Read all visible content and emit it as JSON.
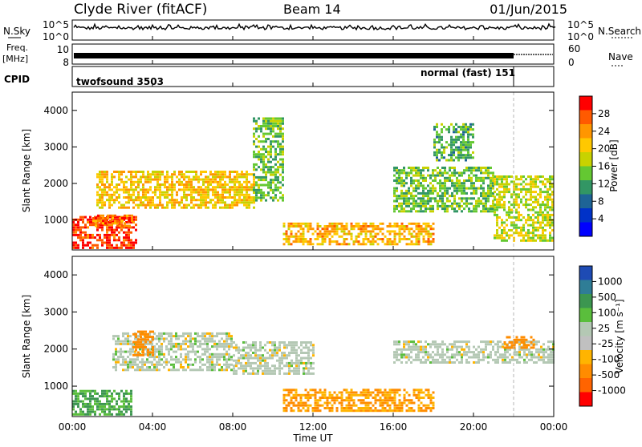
{
  "header": {
    "station": "Clyde River (fitACF)",
    "beam": "Beam 14",
    "date": "01/Jun/2015"
  },
  "strips": {
    "nsky_label": "N.Sky",
    "nsky_ticks": [
      "10^5",
      "10^0"
    ],
    "nsearch_label": "N.Search",
    "nsearch_ticks": [
      "10^5",
      "10^0"
    ],
    "freq_label_1": "Freq.",
    "freq_label_2": "[MHz]",
    "freq_ticks": [
      "10",
      "8"
    ],
    "nave_label": "Nave",
    "nave_ticks": [
      "60",
      "0"
    ],
    "cpid_label": "CPID",
    "cpid_segments": [
      {
        "name": "twofsound 3503",
        "start_hour": 0,
        "end_hour": 21.9
      },
      {
        "name": "normal (fast) 151",
        "start_hour": 21.9,
        "end_hour": 24
      }
    ]
  },
  "axes": {
    "ylabel": "Slant Range [km]",
    "xlabel": "Time UT",
    "x_ticks": [
      "00:00",
      "04:00",
      "08:00",
      "12:00",
      "16:00",
      "20:00",
      "00:00"
    ],
    "y_ticks": [
      "1000",
      "2000",
      "3000",
      "4000"
    ]
  },
  "colorbars": {
    "power": {
      "label": "Power [dB]",
      "ticks": [
        "28",
        "24",
        "20",
        "16",
        "12",
        "8",
        "4"
      ],
      "colors": [
        "#ff0000",
        "#ff5a00",
        "#ff9600",
        "#ffc800",
        "#c8d200",
        "#64c832",
        "#329664",
        "#1e6496",
        "#0032c8",
        "#0000ff"
      ]
    },
    "velocity": {
      "label": "Velocity [m s⁻¹]",
      "ticks": [
        "1000",
        "500",
        "100",
        "25",
        "-25",
        "-100",
        "-500",
        "-1000"
      ],
      "colors": [
        "#1e4bb4",
        "#2f7d96",
        "#3c9650",
        "#5abe3c",
        "#b4c8b4",
        "#c0c0c0",
        "#ffb400",
        "#ff8c00",
        "#ff6400",
        "#ff0000"
      ]
    }
  },
  "chart_data": [
    {
      "type": "heatmap",
      "panel": "power",
      "x_range_hours": [
        0,
        24
      ],
      "ylim": [
        180,
        4500
      ],
      "description_regions_hours_km": [
        [
          0,
          3.2,
          200,
          1100,
          28
        ],
        [
          1,
          3.0,
          800,
          1100,
          24
        ],
        [
          1.2,
          9,
          1300,
          2300,
          18
        ],
        [
          9,
          10.5,
          1500,
          3800,
          10
        ],
        [
          10.5,
          18,
          300,
          900,
          20
        ],
        [
          16,
          21,
          1200,
          2400,
          10
        ],
        [
          18,
          20,
          2600,
          3600,
          8
        ],
        [
          21,
          24,
          400,
          2200,
          14
        ]
      ]
    },
    {
      "type": "heatmap",
      "panel": "velocity",
      "x_range_hours": [
        0,
        24
      ],
      "ylim": [
        180,
        4500
      ],
      "description_regions_hours_km": [
        [
          0,
          3,
          200,
          900,
          100
        ],
        [
          2,
          8,
          1400,
          2400,
          0
        ],
        [
          3,
          4,
          1800,
          2500,
          -300
        ],
        [
          8,
          12,
          1300,
          2200,
          0
        ],
        [
          10.5,
          18,
          300,
          900,
          -100
        ],
        [
          16,
          24,
          1600,
          2200,
          0
        ],
        [
          21.5,
          23,
          2000,
          2300,
          -300
        ]
      ]
    }
  ]
}
